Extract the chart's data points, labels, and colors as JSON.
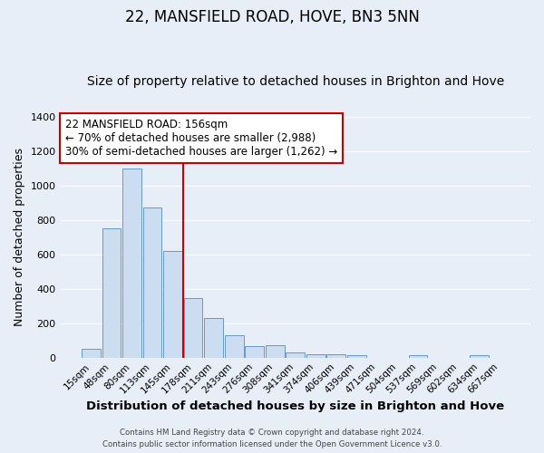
{
  "title": "22, MANSFIELD ROAD, HOVE, BN3 5NN",
  "subtitle": "Size of property relative to detached houses in Brighton and Hove",
  "xlabel": "Distribution of detached houses by size in Brighton and Hove",
  "ylabel": "Number of detached properties",
  "bin_labels": [
    "15sqm",
    "48sqm",
    "80sqm",
    "113sqm",
    "145sqm",
    "178sqm",
    "211sqm",
    "243sqm",
    "276sqm",
    "308sqm",
    "341sqm",
    "374sqm",
    "406sqm",
    "439sqm",
    "471sqm",
    "504sqm",
    "537sqm",
    "569sqm",
    "602sqm",
    "634sqm",
    "667sqm"
  ],
  "bar_values": [
    50,
    750,
    1100,
    870,
    620,
    345,
    228,
    132,
    65,
    72,
    28,
    22,
    18,
    14,
    0,
    0,
    12,
    0,
    0,
    12,
    0
  ],
  "bar_color": "#ccddf2",
  "bar_edge_color": "#6699cc",
  "vline_x": 4.5,
  "vline_color": "#cc0000",
  "ylim": [
    0,
    1400
  ],
  "yticks": [
    0,
    200,
    400,
    600,
    800,
    1000,
    1200,
    1400
  ],
  "annotation_title": "22 MANSFIELD ROAD: 156sqm",
  "annotation_line1": "← 70% of detached houses are smaller (2,988)",
  "annotation_line2": "30% of semi-detached houses are larger (1,262) →",
  "annotation_box_facecolor": "#ffffff",
  "annotation_box_edgecolor": "#cc0000",
  "footer1": "Contains HM Land Registry data © Crown copyright and database right 2024.",
  "footer2": "Contains public sector information licensed under the Open Government Licence v3.0.",
  "background_color": "#e8eef8",
  "plot_background_color": "#e8eef8",
  "grid_color": "#ffffff",
  "title_fontsize": 12,
  "subtitle_fontsize": 10,
  "ylabel_fontsize": 9,
  "xlabel_fontsize": 9.5
}
